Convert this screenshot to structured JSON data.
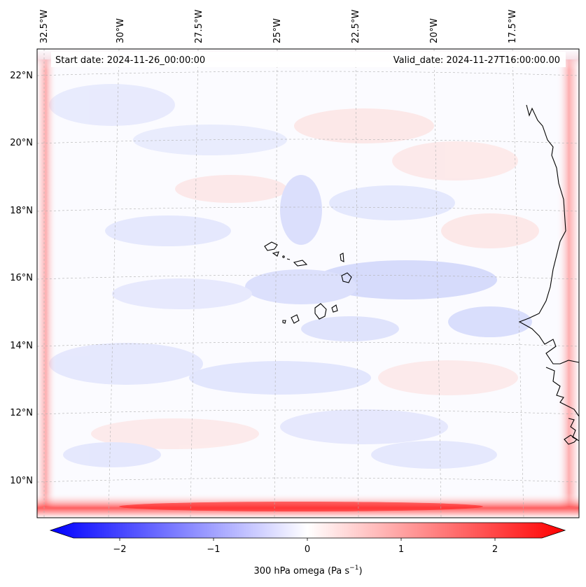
{
  "map": {
    "start_date": "Start date: 2024-11-26_00:00:00",
    "valid_date": "Valid_date: 2024-11-27T16:00:00.00",
    "lon_labels": [
      "32.5°W",
      "30°W",
      "27.5°W",
      "25°W",
      "22.5°W",
      "20°W",
      "17.5°W"
    ],
    "lat_labels": [
      "22°N",
      "20°N",
      "18°N",
      "16°N",
      "14°N",
      "12°N",
      "10°N"
    ],
    "colorbar": {
      "label": "300 hPa omega (Pa s",
      "label_exp": "−1",
      "label_close": ")",
      "ticks": [
        "−2",
        "−1",
        "0",
        "1",
        "2"
      ],
      "colors": {
        "negative": "#0000ff",
        "zero": "#ffffff",
        "positive": "#ff0000"
      }
    },
    "field_colors": {
      "weak_negative": "#d9defc",
      "weak_positive": "#fde3e3",
      "edge_positive": "#ff4d4d"
    }
  }
}
